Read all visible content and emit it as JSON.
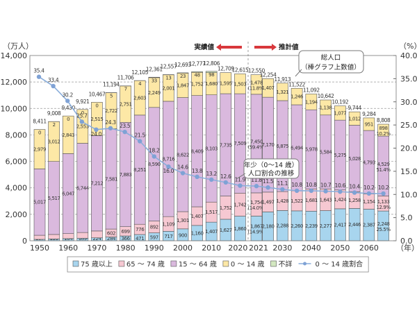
{
  "chart_data": {
    "type": "bar",
    "stacked": true,
    "categories": [
      "1950",
      "1955",
      "1960",
      "1965",
      "1970",
      "1975",
      "1980",
      "1985",
      "1990",
      "1995",
      "2000",
      "2005",
      "2010",
      "2015",
      "2020",
      "2021",
      "2025",
      "2030",
      "2035",
      "2040",
      "2045",
      "2050",
      "2055",
      "2060",
      "2065"
    ],
    "x_tick_labels": [
      "1950",
      "1960",
      "1970",
      "1980",
      "1990",
      "2000",
      "2010",
      "2020",
      "2021",
      "2030",
      "2040",
      "2050",
      "2060"
    ],
    "x_unit_label": "（年）",
    "y_left": {
      "unit_label": "（万人）",
      "ylim": [
        0,
        14000
      ],
      "ticks": [
        "0",
        "2,000",
        "4,000",
        "6,000",
        "8,000",
        "10,000",
        "12,000",
        "14,000"
      ]
    },
    "y_right": {
      "unit_label": "（%）",
      "ylim": [
        0,
        40
      ],
      "ticks": [
        "0.0",
        "5.0",
        "10.0",
        "15.0",
        "20.0",
        "25.0",
        "30.0",
        "35.0",
        "40.0"
      ]
    },
    "grid": true,
    "series": [
      {
        "name": "75 歳以上",
        "color": "#a8d5ee",
        "values": [
          107,
          139,
          164,
          189,
          224,
          284,
          366,
          471,
          597,
          717,
          900,
          1160,
          1407,
          1627,
          1860,
          1867,
          2180,
          2288,
          2260,
          2239,
          2277,
          2417,
          2446,
          2387,
          2248
        ]
      },
      {
        "name": "65 ～ 74 歳",
        "color": "#f6c8d2",
        "values": [
          309,
          338,
          376,
          434,
          516,
          602,
          699,
          776,
          892,
          1109,
          1301,
          1407,
          1517,
          1752,
          1742,
          1754,
          1497,
          1428,
          1522,
          1681,
          1643,
          1424,
          1258,
          1154,
          1133
        ]
      },
      {
        "name": "15 ～ 64 歳",
        "color": "#dab9de",
        "values": [
          5017,
          5517,
          6047,
          6744,
          7212,
          7581,
          7883,
          8251,
          8590,
          8716,
          8622,
          8409,
          8103,
          7735,
          7509,
          7450,
          7170,
          6875,
          6494,
          5978,
          5584,
          5275,
          5028,
          4793,
          4529
        ]
      },
      {
        "name": "0 ～ 14 歳",
        "color": "#fde8a6",
        "values": [
          2979,
          3012,
          2843,
          2553,
          2515,
          2722,
          2751,
          2603,
          2249,
          2001,
          1847,
          1752,
          1680,
          1595,
          1503,
          1478,
          1407,
          1321,
          1246,
          1194,
          1138,
          1077,
          1012,
          951,
          898
        ]
      },
      {
        "name": "不詳",
        "color": "#d3e8c0",
        "values": [
          0,
          2,
          0,
          0,
          0,
          5,
          7,
          4,
          33,
          13,
          23,
          48,
          98,
          null,
          null,
          null,
          null,
          null,
          null,
          null,
          null,
          null,
          null,
          null,
          null
        ]
      }
    ],
    "totals": [
      "8,411",
      "9,008",
      "9,430",
      "9,921",
      "10,467",
      "11,194",
      "11,706",
      "12,105",
      "12,361",
      "12,557",
      "12,693",
      "12,777",
      "12,806",
      "12,709",
      "12,615",
      "12,550",
      "12,254",
      "11,913",
      "11,522",
      "11,092",
      "10,642",
      "10,192",
      "9,744",
      "9,284",
      "8,808"
    ],
    "percent_labels": {
      "2021": {
        "75 歳以上": "(14.9%)",
        "65 ～ 74 歳": "(14.0%)",
        "15 ～ 64 歳": "(59.4%)",
        "0 ～ 14 歳": "(11.8%)"
      },
      "2065": {
        "75 歳以上": "25.5%",
        "65 ～ 74 歳": "12.9%",
        "15 ～ 64 歳": "51.4%",
        "0 ～ 14 歳": "10.2%"
      }
    },
    "line_series": {
      "name": "0 ～ 14 歳割合",
      "axis": "right",
      "color": "#8aaedb",
      "values": [
        35.4,
        33.4,
        30.2,
        25.7,
        24.0,
        24.3,
        23.5,
        21.5,
        18.2,
        16.0,
        14.6,
        13.8,
        13.2,
        12.6,
        11.9,
        11.8,
        11.5,
        11.1,
        10.8,
        10.8,
        10.7,
        10.6,
        10.4,
        10.2,
        10.2
      ]
    },
    "annotations": {
      "actual": "実績値",
      "projected": "推計値",
      "total_callout": [
        "総人口",
        "（棒グラフ上数値）"
      ],
      "ratio_callout": [
        "年少（0～14 歳）",
        "人口割合の推移"
      ]
    },
    "legend_position": "bottom"
  }
}
